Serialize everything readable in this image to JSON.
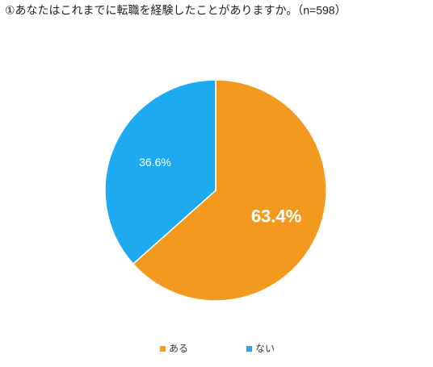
{
  "chart_data": {
    "type": "pie",
    "title": "①あなたはこれまでに転職を経験したことがありますか。（n=598）",
    "categories": [
      "ある",
      "ない"
    ],
    "values": [
      63.4,
      36.6
    ],
    "value_labels": [
      "63.4%",
      "36.6%"
    ],
    "colors": [
      "#f39a1e",
      "#1eaaf1"
    ]
  }
}
